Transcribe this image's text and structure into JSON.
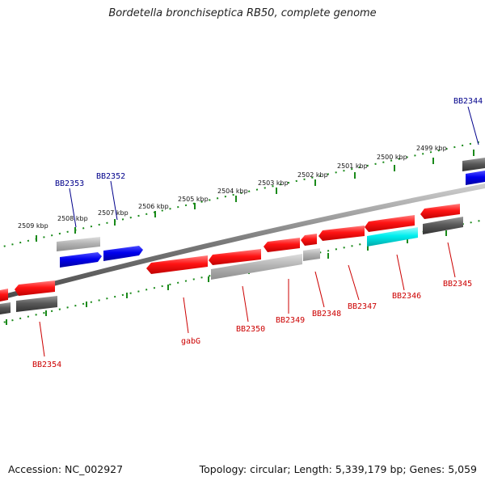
{
  "title": "Bordetella bronchiseptica RB50, complete genome",
  "footer": {
    "accession": "Accession: NC_002927",
    "summary": "Topology: circular; Length: 5,339,179 bp; Genes: 5,059"
  },
  "colors": {
    "forward_gene": "#ff1a1a",
    "reverse_gene_blue": "#0000ee",
    "pseudo_gray": "#5a5a5a",
    "light_gray": "#b4b4b4",
    "cyan": "#00eeee",
    "tick_green": "#1a8a1a",
    "label_red": "#cc0000",
    "label_blue": "#00008b"
  },
  "ticks": [
    {
      "label": "2509 kbp"
    },
    {
      "label": "2508 kbp"
    },
    {
      "label": "2507 kbp"
    },
    {
      "label": "2506 kbp"
    },
    {
      "label": "2505 kbp"
    },
    {
      "label": "2504 kbp"
    },
    {
      "label": "2503 kbp"
    },
    {
      "label": "2502 kbp"
    },
    {
      "label": "2501 kbp"
    },
    {
      "label": "2500 kbp"
    },
    {
      "label": "2499 kbp"
    }
  ],
  "gene_labels": [
    {
      "label": "BB2344",
      "color": "blue"
    },
    {
      "label": "BB2353",
      "color": "blue"
    },
    {
      "label": "BB2352",
      "color": "blue"
    },
    {
      "label": "BB2345",
      "color": "red"
    },
    {
      "label": "BB2346",
      "color": "red"
    },
    {
      "label": "BB2347",
      "color": "red"
    },
    {
      "label": "BB2348",
      "color": "red"
    },
    {
      "label": "BB2349",
      "color": "red"
    },
    {
      "label": "BB2350",
      "color": "red"
    },
    {
      "label": "gabG",
      "color": "red"
    },
    {
      "label": "BB2354",
      "color": "red"
    }
  ]
}
